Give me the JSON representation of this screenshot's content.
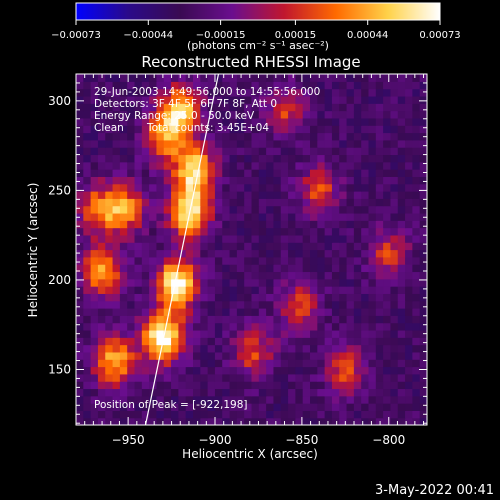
{
  "chart_data": {
    "type": "heatmap",
    "title": "Reconstructed RHESSI Image",
    "xlabel": "Heliocentric X (arcsec)",
    "ylabel": "Heliocentric Y (arcsec)",
    "xlim": [
      -980,
      -778
    ],
    "ylim": [
      119,
      315
    ],
    "xticks": [
      -950,
      -900,
      -850,
      -800
    ],
    "yticks": [
      150,
      200,
      250,
      300
    ],
    "xtick_labels": [
      "−950",
      "−900",
      "−850",
      "−800"
    ],
    "ytick_labels": [
      "150",
      "200",
      "250",
      "300"
    ],
    "colorbar": {
      "range": [
        -0.00073,
        0.00073
      ],
      "ticks": [
        -0.00073,
        -0.00044,
        -0.00015,
        0.00015,
        0.00044,
        0.00073
      ],
      "tick_labels": [
        "−0.00073",
        "−0.00044",
        "−0.00015",
        "0.00015",
        "0.00044",
        "0.00073"
      ],
      "units": "(photons cm⁻² s⁻¹ asec⁻²)",
      "colormap": [
        "#0000ff",
        "#2a0a8a",
        "#3a0a52",
        "#6a0e8e",
        "#c0162e",
        "#ff6a00",
        "#ffd24a",
        "#ffffff"
      ]
    },
    "annotations": {
      "time_range": "29-Jun-2003 14:49:56.000 to 14:55:56.000",
      "detectors": "Detectors: 3F 4F 5F 6F 7F 8F, Att 0",
      "energy_range": "Energy Range: 25.0 - 50.0 keV",
      "clean": "Clean",
      "total_counts": "Total counts: 3.45E+04",
      "peak": "Position of Peak = [-922,198]"
    },
    "limb_line": {
      "x": [
        -940,
        -898
      ],
      "y": [
        119,
        315
      ]
    },
    "bright_sources": [
      {
        "x": -930,
        "y": 168,
        "intensity": 0.00073
      },
      {
        "x": -922,
        "y": 198,
        "intensity": 0.00073
      },
      {
        "x": -915,
        "y": 238,
        "intensity": 0.0006
      },
      {
        "x": -912,
        "y": 262,
        "intensity": 0.00055
      },
      {
        "x": -920,
        "y": 295,
        "intensity": 0.0005
      },
      {
        "x": -958,
        "y": 155,
        "intensity": 0.00045
      },
      {
        "x": -965,
        "y": 205,
        "intensity": 0.0004
      },
      {
        "x": -952,
        "y": 240,
        "intensity": 0.00035
      },
      {
        "x": -968,
        "y": 240,
        "intensity": 0.00025
      },
      {
        "x": -930,
        "y": 280,
        "intensity": 0.0003
      },
      {
        "x": -840,
        "y": 250,
        "intensity": 0.0002
      },
      {
        "x": -852,
        "y": 185,
        "intensity": 0.0002
      },
      {
        "x": -825,
        "y": 150,
        "intensity": 0.00018
      },
      {
        "x": -878,
        "y": 160,
        "intensity": 0.00018
      },
      {
        "x": -800,
        "y": 215,
        "intensity": 0.00015
      },
      {
        "x": -860,
        "y": 295,
        "intensity": 0.00015
      }
    ],
    "grid": false,
    "legend": "none"
  },
  "footer": {
    "date": "3-May-2022 00:41"
  }
}
